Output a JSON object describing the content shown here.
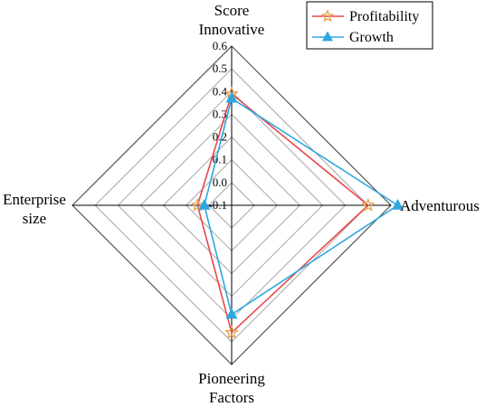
{
  "chart_data": {
    "type": "radar",
    "title": "",
    "axis_title": "Score",
    "axes": [
      "Innovative",
      "Adventurous",
      "Pioneering Factors",
      "Enterprise size"
    ],
    "axis_label_lines": [
      [
        "Innovative"
      ],
      [
        "Adventurous"
      ],
      [
        "Pioneering",
        "Factors"
      ],
      [
        "Enterprise",
        "size"
      ]
    ],
    "rlim": [
      -0.1,
      0.6
    ],
    "ticks": [
      -0.1,
      0.0,
      0.1,
      0.2,
      0.3,
      0.4,
      0.5,
      0.6
    ],
    "tick_labels": [
      "-0.1",
      "0.0",
      "0.1",
      "0.2",
      "0.3",
      "0.4",
      "0.5",
      "0.6"
    ],
    "grid": true,
    "legend": "top-right",
    "series": [
      {
        "name": "Profitability",
        "values": [
          0.39,
          0.5,
          0.46,
          0.05
        ],
        "color": "#e8474b",
        "marker": "star",
        "marker_color": "#e3a24c"
      },
      {
        "name": "Growth",
        "values": [
          0.37,
          0.63,
          0.38,
          0.02
        ],
        "color": "#2ea7e0",
        "marker": "triangle",
        "marker_color": "#2ea7e0"
      }
    ]
  }
}
